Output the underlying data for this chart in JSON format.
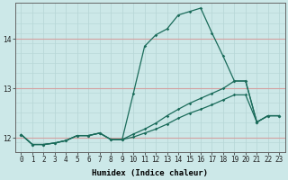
{
  "title": "",
  "xlabel": "Humidex (Indice chaleur)",
  "ylabel": "",
  "bg_color": "#cce8e8",
  "grid_color_v": "#b8d8d8",
  "grid_color_h": "#d4a0a0",
  "line_color": "#1a6b5a",
  "xlim": [
    -0.5,
    23.5
  ],
  "ylim": [
    11.72,
    14.72
  ],
  "yticks": [
    12,
    13,
    14
  ],
  "xticks": [
    0,
    1,
    2,
    3,
    4,
    5,
    6,
    7,
    8,
    9,
    10,
    11,
    12,
    13,
    14,
    15,
    16,
    17,
    18,
    19,
    20,
    21,
    22,
    23
  ],
  "line1_x": [
    0,
    1,
    2,
    3,
    4,
    5,
    6,
    7,
    8,
    9,
    10,
    11,
    12,
    13,
    14,
    15,
    16,
    17,
    18,
    19,
    20,
    21,
    22,
    23
  ],
  "line1_y": [
    12.07,
    11.87,
    11.87,
    11.9,
    11.95,
    12.05,
    12.05,
    12.1,
    11.97,
    11.97,
    12.9,
    13.85,
    14.08,
    14.2,
    14.48,
    14.55,
    14.62,
    14.12,
    13.65,
    13.15,
    13.15,
    12.32,
    12.45,
    12.45
  ],
  "line2_x": [
    0,
    1,
    2,
    3,
    4,
    5,
    6,
    7,
    8,
    9,
    10,
    11,
    12,
    13,
    14,
    15,
    16,
    17,
    18,
    19,
    20,
    21,
    22,
    23
  ],
  "line2_y": [
    12.07,
    11.87,
    11.87,
    11.9,
    11.95,
    12.05,
    12.05,
    12.1,
    11.97,
    11.97,
    12.08,
    12.18,
    12.3,
    12.45,
    12.58,
    12.7,
    12.8,
    12.9,
    13.0,
    13.15,
    13.15,
    12.32,
    12.45,
    12.45
  ],
  "line3_x": [
    0,
    1,
    2,
    3,
    4,
    5,
    6,
    7,
    8,
    9,
    10,
    11,
    12,
    13,
    14,
    15,
    16,
    17,
    18,
    19,
    20,
    21,
    22,
    23
  ],
  "line3_y": [
    12.07,
    11.87,
    11.87,
    11.9,
    11.95,
    12.05,
    12.05,
    12.1,
    11.97,
    11.97,
    12.02,
    12.1,
    12.18,
    12.28,
    12.4,
    12.5,
    12.58,
    12.67,
    12.77,
    12.87,
    12.87,
    12.32,
    12.45,
    12.45
  ],
  "markersize": 1.8,
  "linewidth": 0.9
}
